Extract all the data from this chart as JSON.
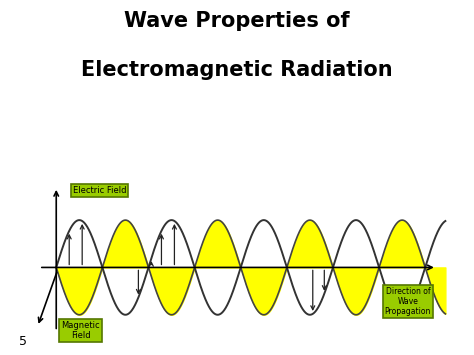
{
  "title_line1": "Wave Properties of",
  "title_line2": "Electromagnetic Radiation",
  "title_fontsize": 15,
  "title_fontweight": "bold",
  "bg_color": "#ffffff",
  "panel_bg": "#ccffcc",
  "label_electric": "Electric Field",
  "label_magnetic": "Magnetic\nField",
  "label_direction": "Direction of\nWave\nPropagation",
  "label_box_color": "#99cc00",
  "label_box_edge": "#557700",
  "wave_color_electric": "#333333",
  "wave_color_magnetic": "#444444",
  "fill_color_yellow": "#ffff00",
  "fill_alpha": 1.0,
  "arrow_color": "#222222",
  "page_number": "5",
  "period": 3.2,
  "amplitude": 1.0,
  "xlim": [
    -0.8,
    14.0
  ],
  "ylim": [
    -1.55,
    1.9
  ]
}
